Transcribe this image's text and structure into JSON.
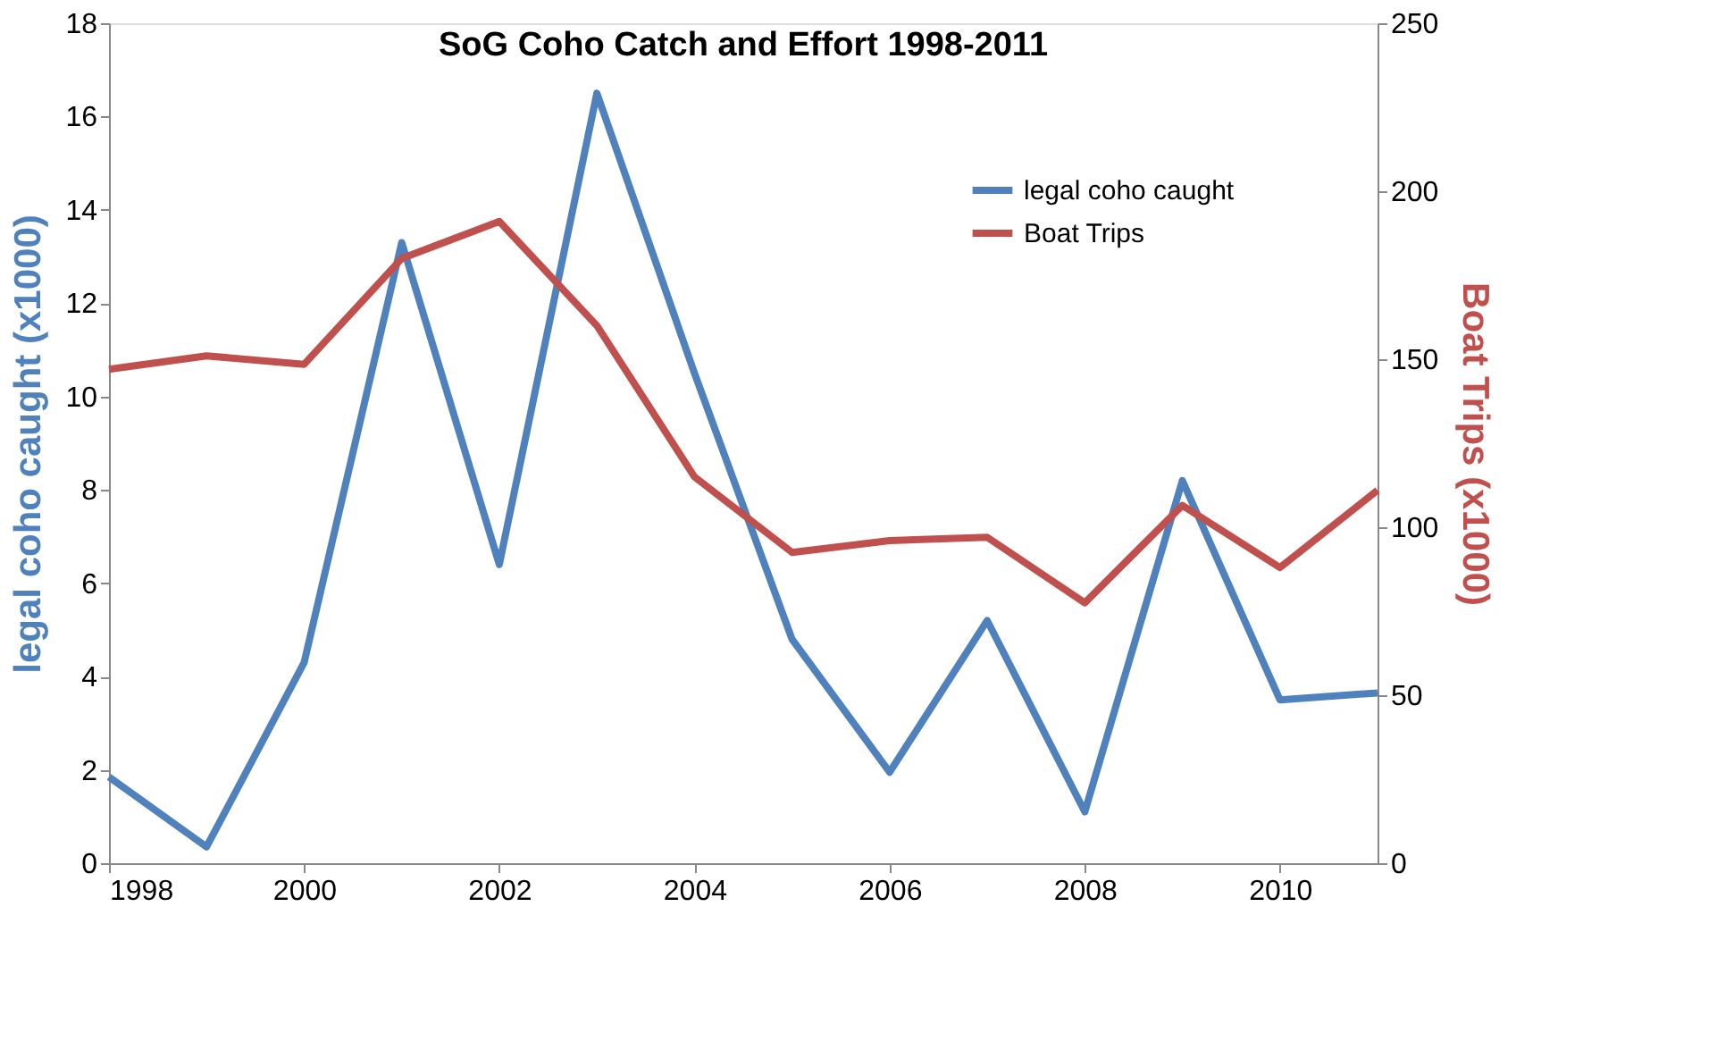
{
  "chart_data": {
    "type": "line",
    "title": "SoG Coho Catch and Effort 1998-2011",
    "ylabel": "legal coho caught (x1000)",
    "y2label": "Boat Trips (x1000)",
    "x": [
      1998,
      1999,
      2000,
      2001,
      2002,
      2003,
      2004,
      2005,
      2006,
      2007,
      2008,
      2009,
      2010,
      2011
    ],
    "series": [
      {
        "name": "legal coho caught",
        "color": "#4f81bd",
        "values": [
          1.85,
          0.35,
          4.3,
          13.3,
          6.4,
          16.5,
          10.5,
          4.8,
          1.95,
          5.2,
          1.1,
          8.2,
          3.5,
          3.65
        ]
      },
      {
        "name": "Boat Trips",
        "color": "#c0504d",
        "axis": "y2",
        "values": [
          147,
          151,
          148.5,
          180,
          191,
          160,
          115,
          92.5,
          96,
          97,
          77.5,
          106.5,
          88,
          111
        ]
      }
    ],
    "xlim": [
      1998,
      2011
    ],
    "xticks": [
      1998,
      2000,
      2002,
      2004,
      2006,
      2008,
      2010
    ],
    "ylim": [
      0,
      18
    ],
    "yticks": [
      0,
      2,
      4,
      6,
      8,
      10,
      12,
      14,
      16,
      18
    ],
    "y2lim": [
      0,
      250
    ],
    "y2ticks": [
      0,
      50,
      100,
      150,
      200,
      250
    ],
    "grid": false,
    "legend": "top right",
    "marker": "none",
    "line_style": "solid"
  }
}
